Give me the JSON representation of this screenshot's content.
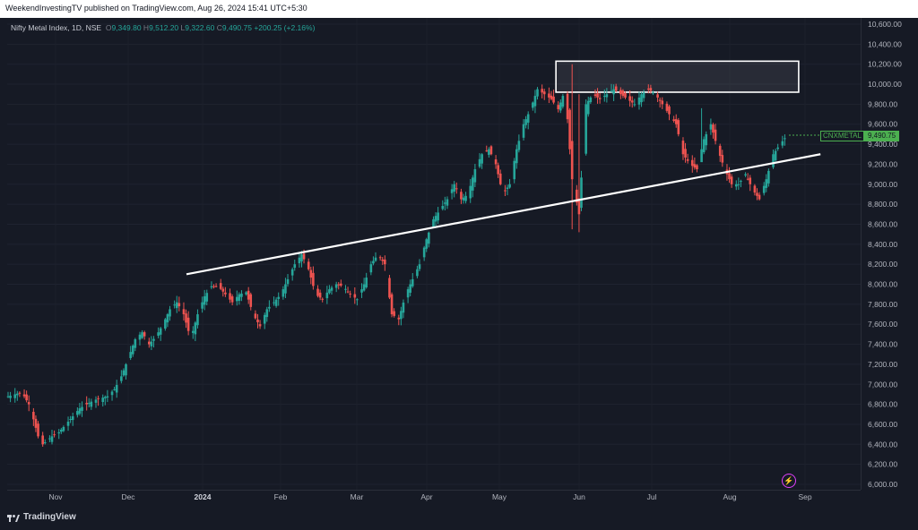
{
  "header": {
    "published": "WeekendInvestingTV published on TradingView.com, Aug 26, 2024 15:41 UTC+5:30"
  },
  "legend": {
    "name": "Nifty Metal Index, 1D, NSE",
    "o_label": "O",
    "o": "9,349.80",
    "h_label": "H",
    "h": "9,512.20",
    "l_label": "L",
    "l": "9,322.60",
    "c_label": "C",
    "c": "9,490.75",
    "change": "+200.25 (+2.16%)"
  },
  "price_tag": {
    "symbol": "CNXMETAL",
    "price": "9,490.75",
    "color": "#4caf50"
  },
  "footer": {
    "brand": "TradingView"
  },
  "colors": {
    "up": "#26a69a",
    "down": "#ef5350",
    "background": "#161a25",
    "trendline": "#ffffff"
  },
  "chart_data": {
    "type": "candlestick",
    "title": "Nifty Metal Index, 1D, NSE",
    "ylim": [
      6000,
      10600
    ],
    "y_ticks": [
      "10,600.00",
      "10,400.00",
      "10,200.00",
      "10,000.00",
      "9,800.00",
      "9,600.00",
      "9,400.00",
      "9,200.00",
      "9,000.00",
      "8,800.00",
      "8,600.00",
      "8,400.00",
      "8,200.00",
      "8,000.00",
      "7,800.00",
      "7,600.00",
      "7,400.00",
      "7,200.00",
      "7,000.00",
      "6,800.00",
      "6,600.00",
      "6,400.00",
      "6,200.00",
      "6,000.00"
    ],
    "x_ticks": [
      {
        "label": "Nov",
        "bold": false
      },
      {
        "label": "Dec",
        "bold": false
      },
      {
        "label": "2024",
        "bold": true
      },
      {
        "label": "Feb",
        "bold": false
      },
      {
        "label": "Mar",
        "bold": false
      },
      {
        "label": "Apr",
        "bold": false
      },
      {
        "label": "May",
        "bold": false
      },
      {
        "label": "Jun",
        "bold": false
      },
      {
        "label": "Jul",
        "bold": false
      },
      {
        "label": "Aug",
        "bold": false
      },
      {
        "label": "Sep",
        "bold": false
      }
    ],
    "path_note_units": "day index / price",
    "close_path": [
      [
        0,
        6880
      ],
      [
        3,
        6900
      ],
      [
        6,
        6920
      ],
      [
        9,
        6800
      ],
      [
        11,
        6650
      ],
      [
        13,
        6480
      ],
      [
        15,
        6400
      ],
      [
        17,
        6440
      ],
      [
        19,
        6480
      ],
      [
        22,
        6520
      ],
      [
        25,
        6600
      ],
      [
        28,
        6680
      ],
      [
        31,
        6760
      ],
      [
        34,
        6800
      ],
      [
        37,
        6840
      ],
      [
        40,
        6860
      ],
      [
        43,
        6880
      ],
      [
        46,
        6950
      ],
      [
        49,
        7080
      ],
      [
        52,
        7260
      ],
      [
        55,
        7450
      ],
      [
        58,
        7520
      ],
      [
        61,
        7400
      ],
      [
        64,
        7480
      ],
      [
        67,
        7600
      ],
      [
        70,
        7750
      ],
      [
        73,
        7820
      ],
      [
        76,
        7700
      ],
      [
        79,
        7450
      ],
      [
        82,
        7700
      ],
      [
        85,
        7880
      ],
      [
        88,
        7980
      ],
      [
        91,
        7980
      ],
      [
        94,
        7900
      ],
      [
        97,
        7820
      ],
      [
        100,
        7900
      ],
      [
        103,
        7920
      ],
      [
        106,
        7700
      ],
      [
        109,
        7580
      ],
      [
        112,
        7750
      ],
      [
        115,
        7820
      ],
      [
        118,
        7900
      ],
      [
        121,
        8050
      ],
      [
        124,
        8200
      ],
      [
        127,
        8300
      ],
      [
        130,
        8150
      ],
      [
        133,
        7900
      ],
      [
        136,
        7850
      ],
      [
        139,
        7950
      ],
      [
        142,
        8000
      ],
      [
        145,
        7980
      ],
      [
        148,
        7900
      ],
      [
        151,
        7850
      ],
      [
        154,
        8000
      ],
      [
        157,
        8200
      ],
      [
        160,
        8300
      ],
      [
        163,
        8200
      ],
      [
        166,
        7700
      ],
      [
        169,
        7650
      ],
      [
        172,
        7900
      ],
      [
        175,
        8050
      ],
      [
        178,
        8200
      ],
      [
        181,
        8450
      ],
      [
        184,
        8650
      ],
      [
        187,
        8750
      ],
      [
        190,
        8850
      ],
      [
        193,
        9000
      ],
      [
        196,
        8850
      ],
      [
        199,
        8900
      ],
      [
        202,
        9150
      ],
      [
        205,
        9300
      ],
      [
        208,
        9350
      ],
      [
        211,
        9200
      ],
      [
        214,
        8900
      ],
      [
        217,
        9000
      ],
      [
        220,
        9350
      ],
      [
        223,
        9600
      ],
      [
        226,
        9750
      ],
      [
        229,
        9950
      ],
      [
        232,
        9900
      ],
      [
        235,
        9850
      ],
      [
        238,
        9750
      ],
      [
        241,
        9950
      ],
      [
        244,
        9050
      ],
      [
        247,
        8700
      ],
      [
        250,
        9800
      ],
      [
        253,
        9900
      ],
      [
        256,
        9850
      ],
      [
        259,
        9900
      ],
      [
        262,
        9950
      ],
      [
        265,
        9900
      ],
      [
        268,
        9850
      ],
      [
        271,
        9800
      ],
      [
        274,
        9900
      ],
      [
        277,
        9950
      ],
      [
        280,
        9900
      ],
      [
        283,
        9800
      ],
      [
        286,
        9700
      ],
      [
        289,
        9600
      ],
      [
        292,
        9300
      ],
      [
        295,
        9200
      ],
      [
        298,
        9150
      ],
      [
        301,
        9450
      ],
      [
        304,
        9600
      ],
      [
        307,
        9350
      ],
      [
        310,
        9150
      ],
      [
        313,
        9000
      ],
      [
        316,
        9000
      ],
      [
        319,
        9100
      ],
      [
        322,
        8950
      ],
      [
        325,
        8850
      ],
      [
        328,
        9050
      ],
      [
        331,
        9300
      ],
      [
        334,
        9400
      ],
      [
        337,
        9490
      ]
    ],
    "resistance_zone": {
      "y_low": 9920,
      "y_high": 10230,
      "x_start": 237,
      "x_end": 342
    },
    "trendline": {
      "start": [
        48,
        8100
      ],
      "end": [
        346,
        9300
      ]
    },
    "last_price": 9490.75
  }
}
